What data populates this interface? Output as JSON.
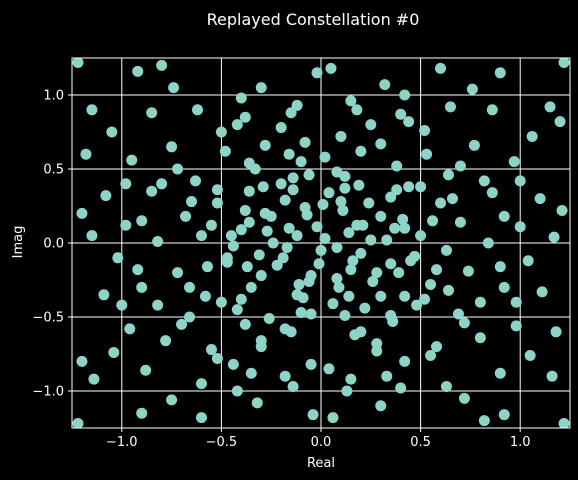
{
  "chart_data": {
    "type": "scatter",
    "title": "Replayed Constellation #0",
    "xlabel": "Real",
    "ylabel": "Imag",
    "xlim": [
      -1.25,
      1.25
    ],
    "ylim": [
      -1.25,
      1.25
    ],
    "xticks": [
      -1.0,
      -0.5,
      0.0,
      0.5,
      1.0
    ],
    "yticks": [
      -1.0,
      -0.5,
      0.0,
      0.5,
      1.0
    ],
    "xtick_labels": [
      "−1.0",
      "−0.5",
      "0.0",
      "0.5",
      "1.0"
    ],
    "ytick_labels": [
      "−1.0",
      "−0.5",
      "0.0",
      "0.5",
      "1.0"
    ],
    "grid": true,
    "colors": {
      "background": "#000000",
      "marker": "#8dd3c7",
      "grid": "#ffffff",
      "text": "#ffffff"
    },
    "series": [
      {
        "points": [
          [
            -0.12,
            0.05
          ],
          [
            0.08,
            -0.03
          ],
          [
            -0.25,
            0.18
          ],
          [
            0.21,
            0.12
          ],
          [
            -0.05,
            -0.22
          ],
          [
            0.15,
            -0.18
          ],
          [
            -0.31,
            -0.08
          ],
          [
            0.33,
            0.02
          ],
          [
            -0.18,
            0.29
          ],
          [
            0.04,
            0.34
          ],
          [
            -0.02,
            0.11
          ],
          [
            0.11,
            0.22
          ],
          [
            -0.22,
            -0.15
          ],
          [
            0.26,
            -0.26
          ],
          [
            -0.38,
            0.22
          ],
          [
            0.41,
            0.16
          ],
          [
            -0.09,
            -0.37
          ],
          [
            0.06,
            -0.41
          ],
          [
            -0.44,
            -0.02
          ],
          [
            0.47,
            -0.09
          ],
          [
            -0.14,
            0.44
          ],
          [
            0.19,
            0.39
          ],
          [
            -0.29,
            0.38
          ],
          [
            0.35,
            0.31
          ],
          [
            -0.35,
            -0.3
          ],
          [
            0.3,
            -0.36
          ],
          [
            -0.01,
            -0.14
          ],
          [
            0.14,
            0.07
          ],
          [
            -0.07,
            0.19
          ],
          [
            0.2,
            -0.07
          ],
          [
            -0.17,
            -0.03
          ],
          [
            0.01,
            0.26
          ],
          [
            -0.27,
            0.08
          ],
          [
            0.24,
            0.27
          ],
          [
            -0.11,
            -0.28
          ],
          [
            0.09,
            -0.3
          ],
          [
            -0.4,
            0.09
          ],
          [
            0.39,
            -0.2
          ],
          [
            -0.2,
            0.4
          ],
          [
            0.12,
            0.45
          ],
          [
            -0.47,
            -0.13
          ],
          [
            0.5,
            0.05
          ],
          [
            -0.05,
            -0.48
          ],
          [
            0.22,
            -0.44
          ],
          [
            -0.33,
            0.5
          ],
          [
            0.44,
            0.38
          ],
          [
            -0.52,
            0.27
          ],
          [
            0.55,
            -0.28
          ],
          [
            -0.26,
            -0.51
          ],
          [
            0.35,
            -0.49
          ],
          [
            -0.58,
            -0.36
          ],
          [
            0.6,
            0.27
          ],
          [
            -0.1,
            0.55
          ],
          [
            0.02,
            0.58
          ],
          [
            -0.6,
            0.05
          ],
          [
            0.63,
            -0.05
          ],
          [
            -0.15,
            -0.6
          ],
          [
            0.17,
            -0.62
          ],
          [
            -0.42,
            -0.45
          ],
          [
            0.48,
            -0.42
          ],
          [
            -0.68,
            0.18
          ],
          [
            0.7,
            0.14
          ],
          [
            -0.48,
            0.62
          ],
          [
            0.53,
            0.6
          ],
          [
            -0.08,
            0.68
          ],
          [
            0.1,
            0.72
          ],
          [
            -0.72,
            -0.2
          ],
          [
            0.74,
            -0.19
          ],
          [
            -0.3,
            -0.7
          ],
          [
            0.28,
            -0.73
          ],
          [
            -0.63,
            0.42
          ],
          [
            0.64,
            0.46
          ],
          [
            -0.66,
            -0.5
          ],
          [
            0.69,
            -0.48
          ],
          [
            -0.2,
            0.78
          ],
          [
            0.25,
            0.8
          ],
          [
            -0.82,
            0.01
          ],
          [
            0.84,
            0.0
          ],
          [
            -0.05,
            -0.82
          ],
          [
            0.04,
            -0.85
          ],
          [
            -0.55,
            -0.72
          ],
          [
            0.58,
            -0.7
          ],
          [
            -0.85,
            0.35
          ],
          [
            0.86,
            0.34
          ],
          [
            -0.38,
            0.85
          ],
          [
            0.4,
            0.87
          ],
          [
            -0.9,
            -0.3
          ],
          [
            0.92,
            -0.3
          ],
          [
            -0.35,
            -0.88
          ],
          [
            0.33,
            -0.9
          ],
          [
            -0.75,
            0.65
          ],
          [
            0.77,
            0.66
          ],
          [
            -0.78,
            -0.66
          ],
          [
            0.8,
            -0.64
          ],
          [
            -0.12,
            0.93
          ],
          [
            0.15,
            0.96
          ],
          [
            -0.98,
            0.12
          ],
          [
            1.0,
            0.11
          ],
          [
            -0.14,
            -0.97
          ],
          [
            0.13,
            -1.0
          ],
          [
            -1.02,
            -0.1
          ],
          [
            1.04,
            -0.12
          ],
          [
            -0.62,
            0.9
          ],
          [
            0.65,
            0.92
          ],
          [
            -0.95,
            0.56
          ],
          [
            0.97,
            0.55
          ],
          [
            -0.96,
            -0.58
          ],
          [
            0.98,
            -0.56
          ],
          [
            -0.6,
            -0.95
          ],
          [
            0.63,
            -0.97
          ],
          [
            -0.3,
            1.05
          ],
          [
            0.32,
            1.07
          ],
          [
            -1.08,
            0.32
          ],
          [
            1.1,
            0.3
          ],
          [
            -1.09,
            -0.35
          ],
          [
            1.11,
            -0.33
          ],
          [
            -0.32,
            -1.08
          ],
          [
            0.3,
            -1.1
          ],
          [
            -0.85,
            0.88
          ],
          [
            0.86,
            0.9
          ],
          [
            -0.88,
            -0.86
          ],
          [
            0.9,
            -0.88
          ],
          [
            -1.15,
            0.05
          ],
          [
            1.17,
            0.04
          ],
          [
            -0.02,
            1.15
          ],
          [
            0.05,
            1.18
          ],
          [
            -0.04,
            -1.16
          ],
          [
            0.06,
            -1.18
          ],
          [
            -1.2,
            -0.8
          ],
          [
            1.2,
            0.82
          ],
          [
            -0.8,
            1.2
          ],
          [
            0.82,
            -1.2
          ],
          [
            -1.18,
            0.6
          ],
          [
            1.18,
            -0.6
          ],
          [
            -0.6,
            -1.18
          ],
          [
            0.6,
            1.18
          ],
          [
            -1.22,
            1.22
          ],
          [
            1.22,
            -1.22
          ],
          [
            1.22,
            1.22
          ],
          [
            -1.22,
            -1.22
          ],
          [
            -0.45,
            0.05
          ],
          [
            0.42,
            0.1
          ],
          [
            -0.47,
            -0.1
          ],
          [
            0.45,
            -0.12
          ],
          [
            -0.06,
            0.46
          ],
          [
            0.08,
            0.48
          ],
          [
            -0.1,
            -0.47
          ],
          [
            0.12,
            -0.49
          ],
          [
            -0.28,
            0.2
          ],
          [
            0.3,
            0.18
          ],
          [
            -0.3,
            -0.22
          ],
          [
            0.28,
            -0.2
          ],
          [
            -0.16,
            0.1
          ],
          [
            0.18,
            0.12
          ],
          [
            -0.19,
            -0.1
          ],
          [
            0.16,
            -0.12
          ],
          [
            -0.08,
            0.24
          ],
          [
            0.1,
            0.28
          ],
          [
            -0.06,
            -0.26
          ],
          [
            0.08,
            -0.24
          ],
          [
            -0.36,
            0.35
          ],
          [
            0.38,
            0.36
          ],
          [
            -0.4,
            -0.38
          ],
          [
            0.42,
            -0.36
          ],
          [
            -0.55,
            0.12
          ],
          [
            0.56,
            0.15
          ],
          [
            -0.57,
            -0.16
          ],
          [
            0.58,
            -0.18
          ],
          [
            -0.16,
            0.6
          ],
          [
            0.2,
            0.62
          ],
          [
            -0.18,
            -0.58
          ],
          [
            0.2,
            -0.6
          ],
          [
            -0.72,
            0.5
          ],
          [
            0.7,
            0.52
          ],
          [
            -0.7,
            -0.55
          ],
          [
            0.72,
            -0.54
          ],
          [
            -0.5,
            0.75
          ],
          [
            0.52,
            0.76
          ],
          [
            -0.52,
            -0.78
          ],
          [
            0.55,
            -0.76
          ],
          [
            -0.9,
            0.15
          ],
          [
            0.92,
            0.18
          ],
          [
            -0.92,
            -0.18
          ],
          [
            0.9,
            -0.16
          ],
          [
            -0.15,
            0.88
          ],
          [
            0.18,
            0.9
          ],
          [
            -0.18,
            -0.9
          ],
          [
            0.15,
            -0.92
          ],
          [
            -1.05,
            0.75
          ],
          [
            1.06,
            0.72
          ],
          [
            -1.04,
            -0.74
          ],
          [
            1.05,
            -0.76
          ],
          [
            -0.74,
            1.05
          ],
          [
            0.76,
            1.04
          ],
          [
            -0.75,
            -1.06
          ],
          [
            0.72,
            -1.05
          ],
          [
            -0.24,
            0.0
          ],
          [
            0.25,
            0.02
          ],
          [
            0.0,
            -0.05
          ],
          [
            0.02,
            0.03
          ],
          [
            -0.36,
            0.14
          ],
          [
            0.37,
            0.1
          ],
          [
            -0.37,
            -0.16
          ],
          [
            0.35,
            -0.14
          ],
          [
            -0.14,
            0.36
          ],
          [
            0.12,
            0.37
          ],
          [
            -0.12,
            -0.35
          ],
          [
            0.14,
            -0.36
          ],
          [
            -0.52,
            0.36
          ],
          [
            0.5,
            0.38
          ],
          [
            -0.5,
            -0.4
          ],
          [
            0.52,
            -0.38
          ],
          [
            -0.36,
            0.54
          ],
          [
            0.38,
            0.52
          ],
          [
            -0.38,
            -0.55
          ],
          [
            0.36,
            -0.53
          ],
          [
            -0.65,
            0.28
          ],
          [
            0.66,
            0.3
          ],
          [
            -0.66,
            -0.3
          ],
          [
            0.64,
            -0.32
          ],
          [
            -0.28,
            0.66
          ],
          [
            0.3,
            0.67
          ],
          [
            -0.3,
            -0.66
          ],
          [
            0.28,
            -0.68
          ],
          [
            -0.8,
            0.4
          ],
          [
            0.82,
            0.42
          ],
          [
            -0.82,
            -0.42
          ],
          [
            0.8,
            -0.4
          ],
          [
            -0.42,
            0.8
          ],
          [
            0.44,
            0.82
          ],
          [
            -0.44,
            -0.82
          ],
          [
            0.42,
            -0.8
          ],
          [
            -0.98,
            0.4
          ],
          [
            1.0,
            0.42
          ],
          [
            -1.0,
            -0.42
          ],
          [
            0.98,
            -0.4
          ],
          [
            -0.4,
            0.98
          ],
          [
            0.42,
            1.0
          ],
          [
            -0.42,
            -1.0
          ],
          [
            0.4,
            -0.98
          ],
          [
            -1.15,
            0.9
          ],
          [
            1.15,
            0.92
          ],
          [
            -1.14,
            -0.92
          ],
          [
            1.16,
            -0.9
          ],
          [
            -0.92,
            1.16
          ],
          [
            0.9,
            1.15
          ],
          [
            -0.9,
            -1.15
          ],
          [
            0.92,
            -1.16
          ],
          [
            -1.2,
            0.2
          ],
          [
            1.21,
            0.22
          ]
        ]
      }
    ]
  }
}
